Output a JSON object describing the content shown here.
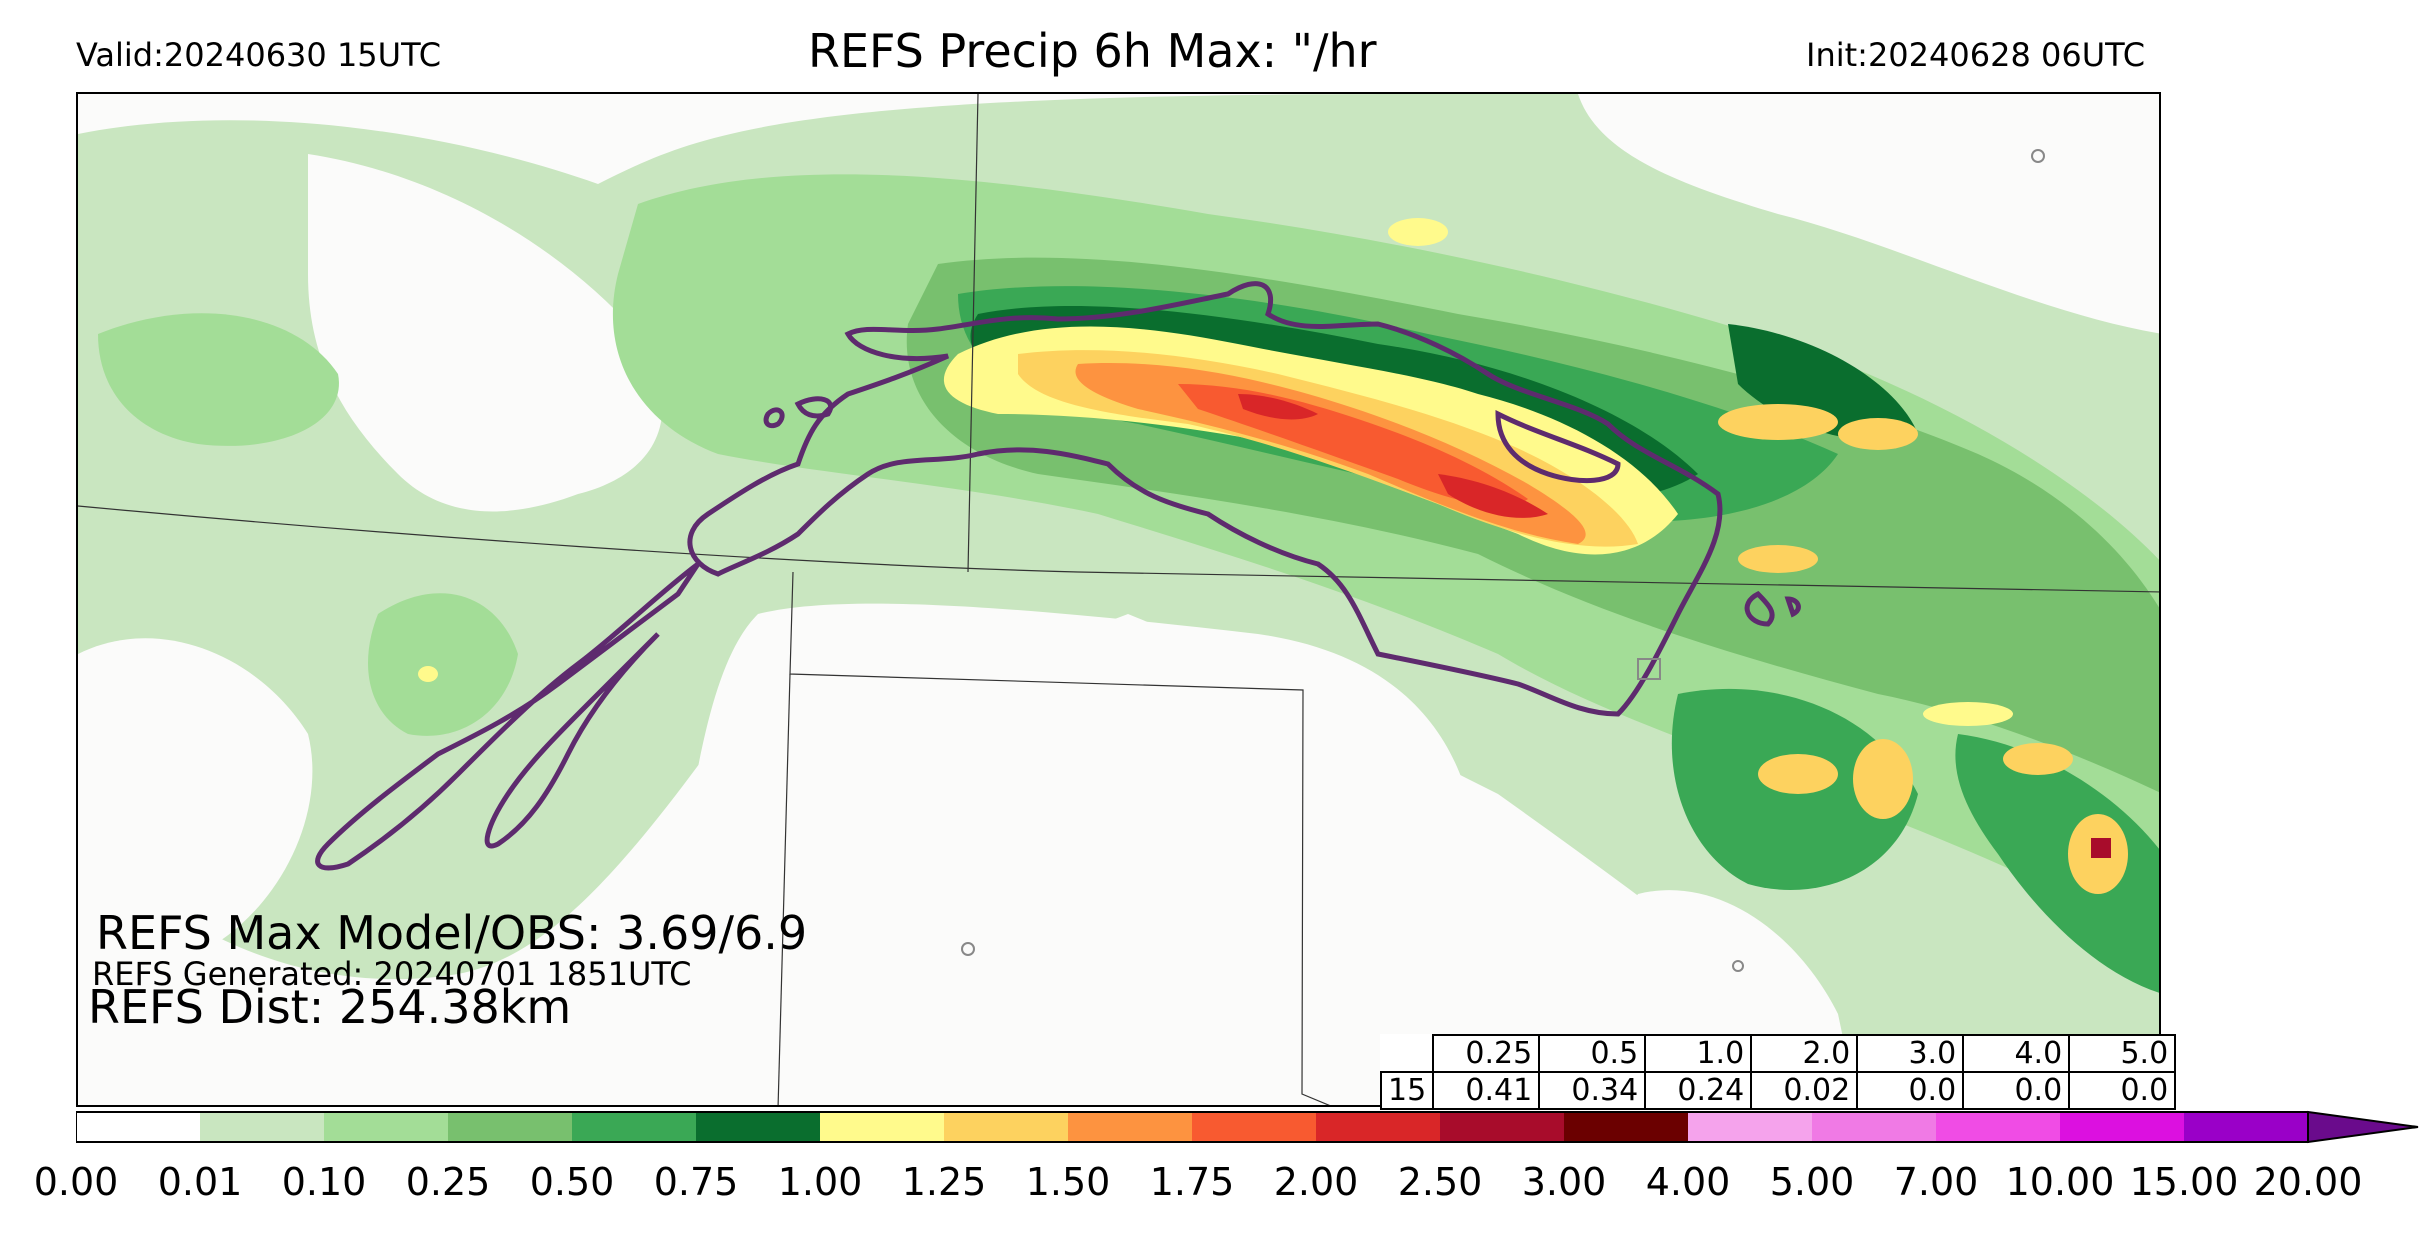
{
  "header": {
    "valid": "Valid:20240630 15UTC",
    "title": "REFS Precip 6h Max: \"/hr",
    "init": "Init:20240628 06UTC"
  },
  "annotations": {
    "max_model_obs": "REFS Max Model/OBS: 3.69/6.9",
    "generated": "REFS Generated: 20240701 1851UTC",
    "distance": "REFS Dist: 254.38km"
  },
  "stats_table": {
    "thresholds": [
      "0.25",
      "0.5",
      "1.0",
      "2.0",
      "3.0",
      "4.0",
      "5.0"
    ],
    "row_label": "15",
    "values": [
      "0.41",
      "0.34",
      "0.24",
      "0.02",
      "0.0",
      "0.0",
      "0.0"
    ]
  },
  "colorbar": {
    "ticks": [
      "0.00",
      "0.01",
      "0.10",
      "0.25",
      "0.50",
      "0.75",
      "1.00",
      "1.25",
      "1.50",
      "1.75",
      "2.00",
      "2.50",
      "3.00",
      "4.00",
      "5.00",
      "7.00",
      "10.00",
      "15.00",
      "20.00"
    ],
    "colors": [
      "#ffffff",
      "#c9e6c0",
      "#a3dd97",
      "#78c06e",
      "#3aa855",
      "#0a6e2e",
      "#fffa8c",
      "#fdd25f",
      "#fd9340",
      "#f85a30",
      "#d92628",
      "#a80c2b",
      "#6b0000",
      "#f5a3ec",
      "#f07ae5",
      "#f04ce5",
      "#dc10e0",
      "#9a00c8"
    ],
    "extend_color": "#6a0b8c"
  },
  "map": {
    "precip_colors": [
      "#c9e6c0",
      "#a3dd97",
      "#78c06e",
      "#3aa855",
      "#0a6e2e",
      "#fffa8c",
      "#fdd25f",
      "#fd9340",
      "#f85a30",
      "#d92628",
      "#a80c2b"
    ],
    "obs_contour_color": "#5e2b6e",
    "border_color": "#333333",
    "background_color": "#fbfbfa"
  }
}
